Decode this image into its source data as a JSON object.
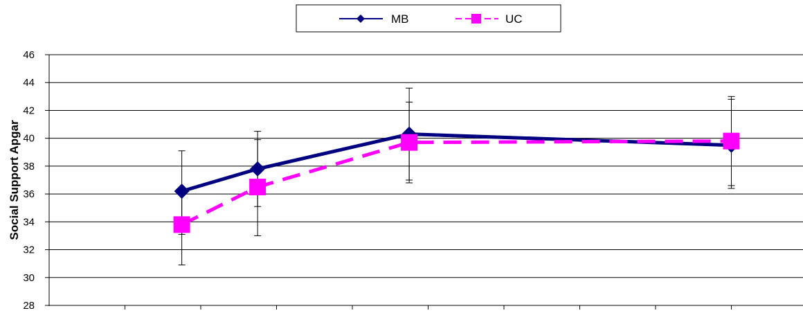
{
  "chart_data": {
    "type": "line",
    "title": "",
    "xlabel": "",
    "ylabel": "Social Support Apgar",
    "ylim": [
      28,
      46
    ],
    "yticks": [
      28,
      30,
      32,
      34,
      36,
      38,
      40,
      42,
      44,
      46
    ],
    "grid": true,
    "legend_position": "top-center",
    "x": [
      1.75,
      2.75,
      4.75,
      9.0
    ],
    "series": [
      {
        "name": "MB",
        "color": "#000080",
        "marker": "diamond",
        "line": "solid",
        "values": [
          36.2,
          37.8,
          40.3,
          39.5
        ],
        "err_low": [
          33.1,
          35.1,
          37.0,
          36.4
        ],
        "err_high": [
          39.1,
          40.5,
          43.6,
          42.8
        ]
      },
      {
        "name": "UC",
        "color": "#FF00FF",
        "marker": "square",
        "line": "dashed",
        "values": [
          33.8,
          36.5,
          39.7,
          39.8
        ],
        "err_low": [
          30.9,
          33.0,
          36.8,
          36.6
        ],
        "err_high": [
          36.4,
          39.9,
          42.6,
          43.0
        ]
      }
    ]
  }
}
